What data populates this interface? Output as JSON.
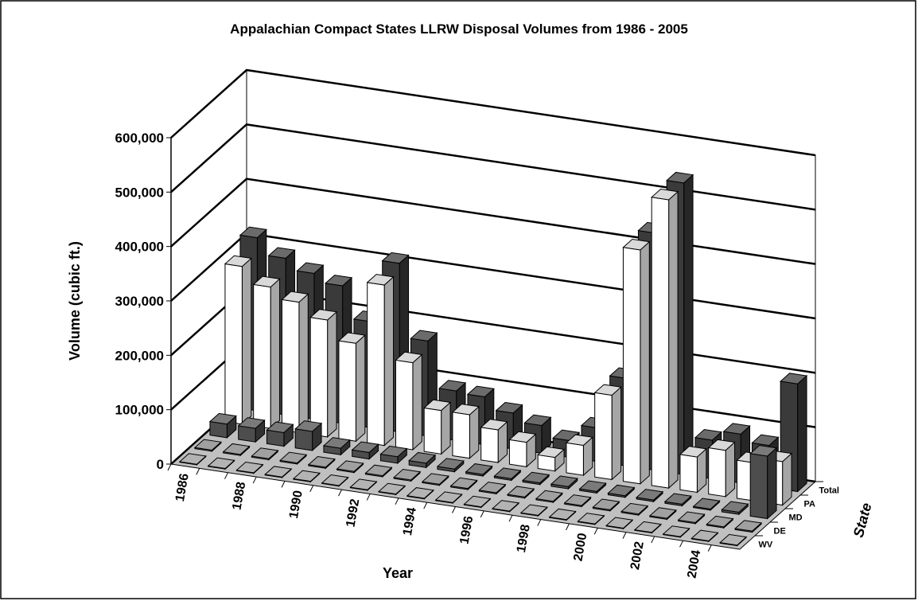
{
  "chart_data": {
    "type": "bar3d",
    "title": "Appalachian Compact States LLRW Disposal Volumes from 1986 - 2005",
    "x_label": "Year",
    "y_label": "Volume (cubic ft.)",
    "z_label": "State",
    "categories": [
      "1986",
      null,
      "1988",
      null,
      "1990",
      null,
      "1992",
      null,
      "1994",
      null,
      "1996",
      null,
      "1998",
      null,
      "2000",
      null,
      "2002",
      null,
      "2004",
      null
    ],
    "series": [
      {
        "name": "WV",
        "color": "#999999",
        "values": [
          1000,
          1000,
          1000,
          1000,
          1000,
          1000,
          1000,
          1000,
          1000,
          1000,
          1000,
          1000,
          1000,
          1000,
          1000,
          1000,
          1000,
          1000,
          1000,
          1000
        ]
      },
      {
        "name": "DE",
        "color": "#808080",
        "values": [
          2000,
          2000,
          2000,
          2000,
          2000,
          2000,
          2000,
          2000,
          2000,
          2000,
          2000,
          2000,
          2000,
          2000,
          2000,
          2000,
          2000,
          2000,
          2000,
          2000
        ]
      },
      {
        "name": "MD",
        "color": "#4d4d4d",
        "values": [
          25000,
          25000,
          25000,
          35000,
          12000,
          12000,
          12000,
          8000,
          5000,
          3000,
          3000,
          3000,
          4000,
          3000,
          3000,
          3000,
          3000,
          2000,
          4000,
          115000
        ]
      },
      {
        "name": "PA",
        "color": "#ffffff",
        "values": [
          290000,
          260000,
          240000,
          215000,
          180000,
          295000,
          160000,
          80000,
          80000,
          60000,
          45000,
          25000,
          55000,
          155000,
          430000,
          530000,
          65000,
          85000,
          70000,
          80000
        ]
      },
      {
        "name": "Total",
        "color": "#3a3a3a",
        "values": [
          318000,
          288000,
          268000,
          253000,
          195000,
          310000,
          175000,
          91000,
          88000,
          66000,
          51000,
          31000,
          62000,
          161000,
          436000,
          536000,
          71000,
          90000,
          77000,
          198000
        ]
      }
    ],
    "ylim": [
      0,
      600000
    ],
    "yticks": [
      0,
      {
        "value": 100000,
        "label": "100,000"
      },
      {
        "value": 200000,
        "label": "200,000"
      },
      {
        "value": 300000,
        "label": "300,000"
      },
      {
        "value": 400000,
        "label": "400,000"
      },
      {
        "value": 500000,
        "label": "500,000"
      },
      {
        "value": 600000,
        "label": "600,000"
      }
    ],
    "grid": true,
    "floor_color": "#c0c0c0"
  }
}
